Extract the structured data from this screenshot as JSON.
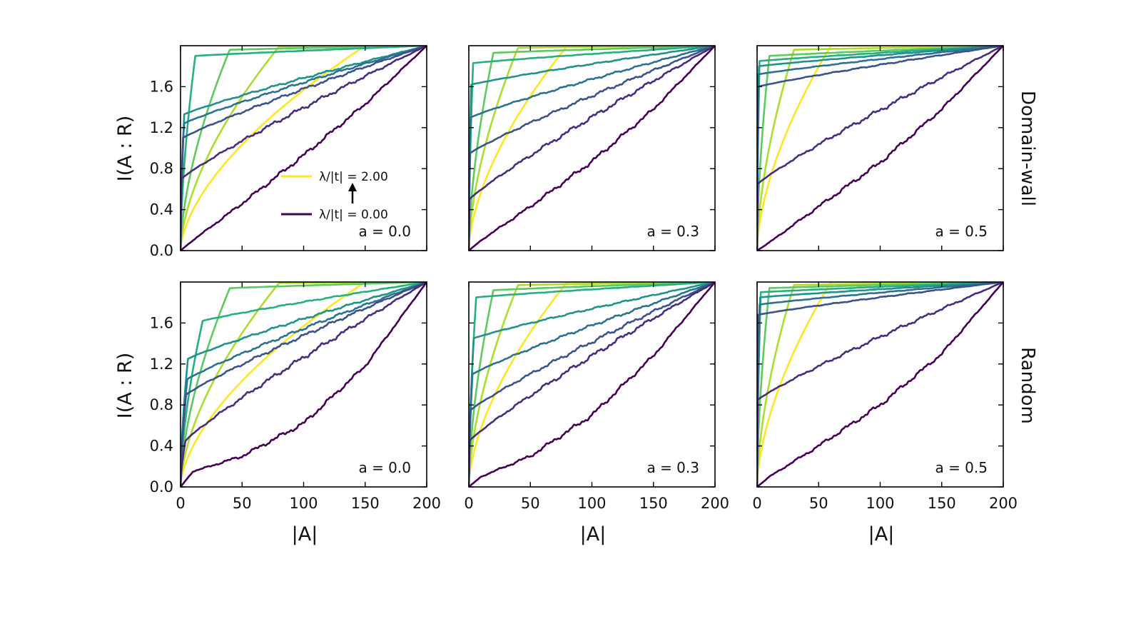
{
  "chart_data": {
    "type": "line",
    "layout": "2x3 grid of subplots",
    "xlabel": "|A|",
    "ylabel": "I(A : R)",
    "xlim": [
      0,
      200
    ],
    "ylim": [
      0,
      2
    ],
    "xticks": [
      "0",
      "50",
      "100",
      "150",
      "200"
    ],
    "yticks": [
      "0.0",
      "0.4",
      "0.8",
      "1.2",
      "1.6"
    ],
    "row_labels": [
      "Domain-wall",
      "Random"
    ],
    "legend": {
      "entries": [
        "λ/|t| = 2.00",
        "λ/|t| = 0.00"
      ],
      "colors": [
        "#fde725",
        "#440154"
      ],
      "placement": "center-right of top-left panel"
    },
    "colormap": "viridis",
    "series_lambda": [
      0.0,
      0.25,
      0.5,
      0.75,
      1.0,
      1.25,
      1.5,
      1.75,
      2.0
    ],
    "series_colors": [
      "#440154",
      "#472d7b",
      "#3b528b",
      "#2c728e",
      "#21918c",
      "#28ae80",
      "#5ec962",
      "#addc30",
      "#fde725"
    ],
    "panels": [
      {
        "row": "Domain-wall",
        "label": "a = 0.0",
        "a": 0.0,
        "anchors": [
          [
            0,
            0.0
          ],
          [
            10,
            0.1
          ],
          [
            50,
            0.46
          ],
          [
            100,
            0.93
          ],
          [
            150,
            1.43
          ],
          [
            200,
            2.0
          ]
        ],
        "knees": [
          0,
          0.06,
          0.2,
          0.28,
          0.3,
          1.2,
          4,
          8,
          15
        ],
        "plateaus": [
          0,
          0.7,
          1.1,
          1.24,
          1.33,
          1.9,
          1.96,
          1.99,
          2.0
        ]
      },
      {
        "row": "Domain-wall",
        "label": "a = 0.3",
        "a": 0.3,
        "anchors": [
          [
            0,
            0.0
          ],
          [
            10,
            0.1
          ],
          [
            50,
            0.43
          ],
          [
            100,
            0.87
          ],
          [
            150,
            1.38
          ],
          [
            200,
            2.0
          ]
        ],
        "knees": [
          0,
          0.05,
          0.1,
          0.15,
          0.2,
          0.35,
          2,
          4,
          8
        ],
        "plateaus": [
          0,
          0.5,
          0.95,
          1.3,
          1.62,
          1.83,
          1.93,
          1.98,
          2.0
        ]
      },
      {
        "row": "Domain-wall",
        "label": "a = 0.5",
        "a": 0.5,
        "anchors": [
          [
            0,
            0.0
          ],
          [
            10,
            0.08
          ],
          [
            50,
            0.43
          ],
          [
            100,
            0.86
          ],
          [
            150,
            1.38
          ],
          [
            200,
            2.0
          ]
        ],
        "knees": [
          0,
          0.05,
          0.08,
          0.1,
          0.15,
          0.2,
          1,
          3,
          6
        ],
        "plateaus": [
          0,
          0.65,
          1.6,
          1.72,
          1.8,
          1.85,
          1.9,
          1.96,
          2.0
        ]
      },
      {
        "row": "Random",
        "label": "a = 0.0",
        "a": 0.0,
        "anchors": [
          [
            0,
            0.0
          ],
          [
            10,
            0.15
          ],
          [
            50,
            0.3
          ],
          [
            100,
            0.62
          ],
          [
            150,
            1.18
          ],
          [
            200,
            2.0
          ]
        ],
        "knees": [
          0,
          0.4,
          0.45,
          0.55,
          0.6,
          1.8,
          4,
          8,
          15
        ],
        "plateaus": [
          0,
          0.45,
          0.9,
          1.05,
          1.25,
          1.62,
          1.94,
          1.99,
          2.0
        ]
      },
      {
        "row": "Random",
        "label": "a = 0.3",
        "a": 0.3,
        "anchors": [
          [
            0,
            0.0
          ],
          [
            10,
            0.1
          ],
          [
            50,
            0.3
          ],
          [
            100,
            0.7
          ],
          [
            150,
            1.28
          ],
          [
            200,
            2.0
          ]
        ],
        "knees": [
          0,
          0.06,
          0.15,
          0.3,
          0.4,
          0.6,
          2,
          4,
          8
        ],
        "plateaus": [
          0,
          0.45,
          0.75,
          1.1,
          1.45,
          1.85,
          1.92,
          1.97,
          2.0
        ]
      },
      {
        "row": "Random",
        "label": "a = 0.5",
        "a": 0.5,
        "anchors": [
          [
            0,
            0.0
          ],
          [
            10,
            0.1
          ],
          [
            50,
            0.4
          ],
          [
            100,
            0.8
          ],
          [
            150,
            1.3
          ],
          [
            200,
            2.0
          ]
        ],
        "knees": [
          0,
          0.05,
          0.1,
          0.2,
          0.25,
          0.3,
          1,
          3,
          6
        ],
        "plateaus": [
          0,
          0.85,
          1.68,
          1.78,
          1.85,
          1.9,
          1.94,
          1.97,
          2.0
        ]
      }
    ]
  }
}
